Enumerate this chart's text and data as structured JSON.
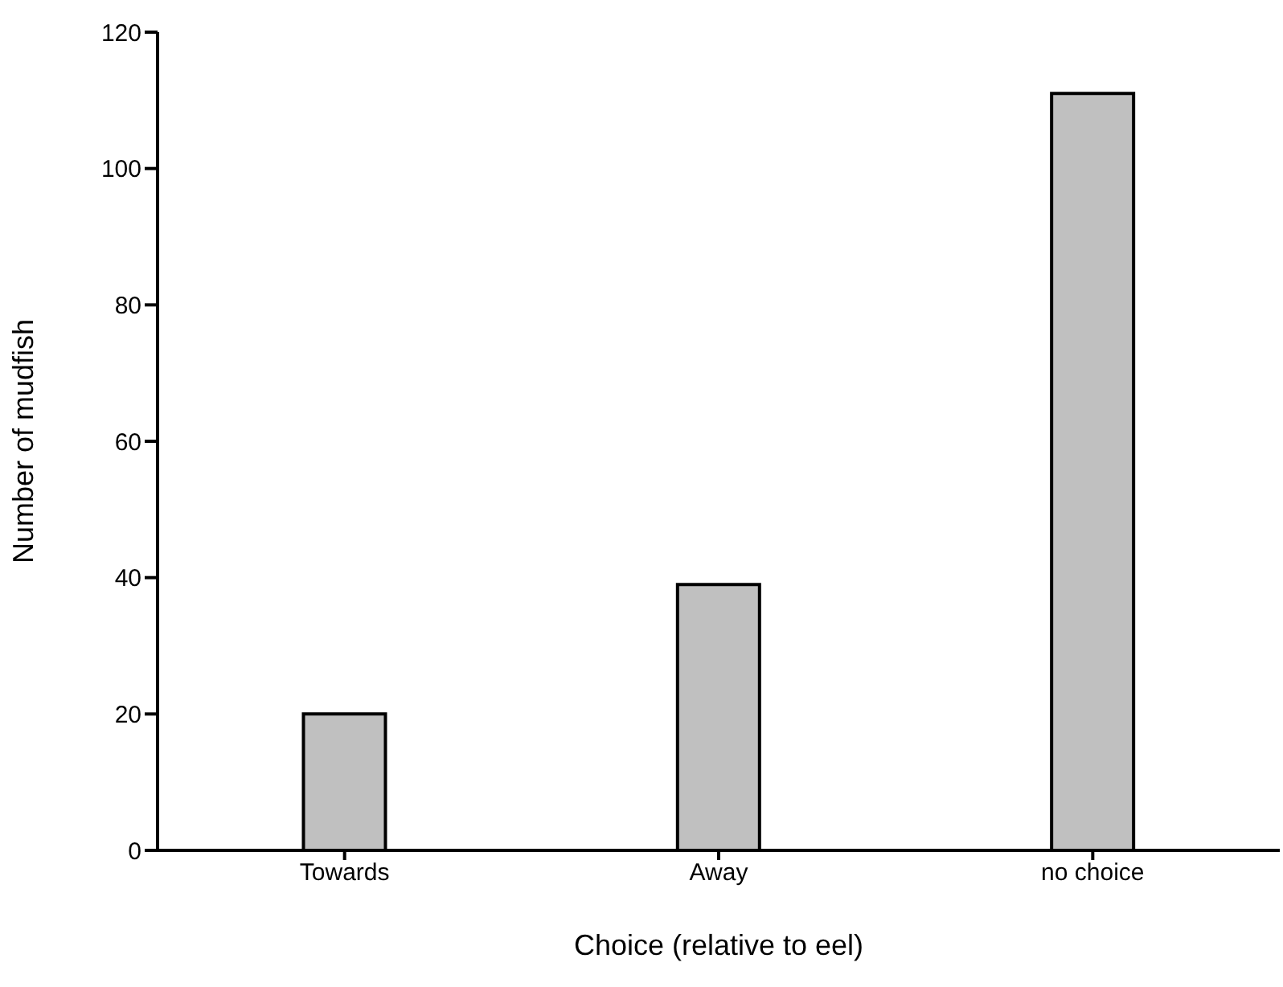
{
  "chart_data": {
    "type": "bar",
    "xlabel": "Choice (relative to eel)",
    "ylabel": "Number of mudfish",
    "categories": [
      "Towards",
      "Away",
      "no choice"
    ],
    "values": [
      20,
      39,
      111
    ],
    "color": "#c0c0c0",
    "ylim": [
      0,
      120
    ],
    "yticks": [
      0,
      20,
      40,
      60,
      80,
      100,
      120
    ],
    "grid": false
  }
}
